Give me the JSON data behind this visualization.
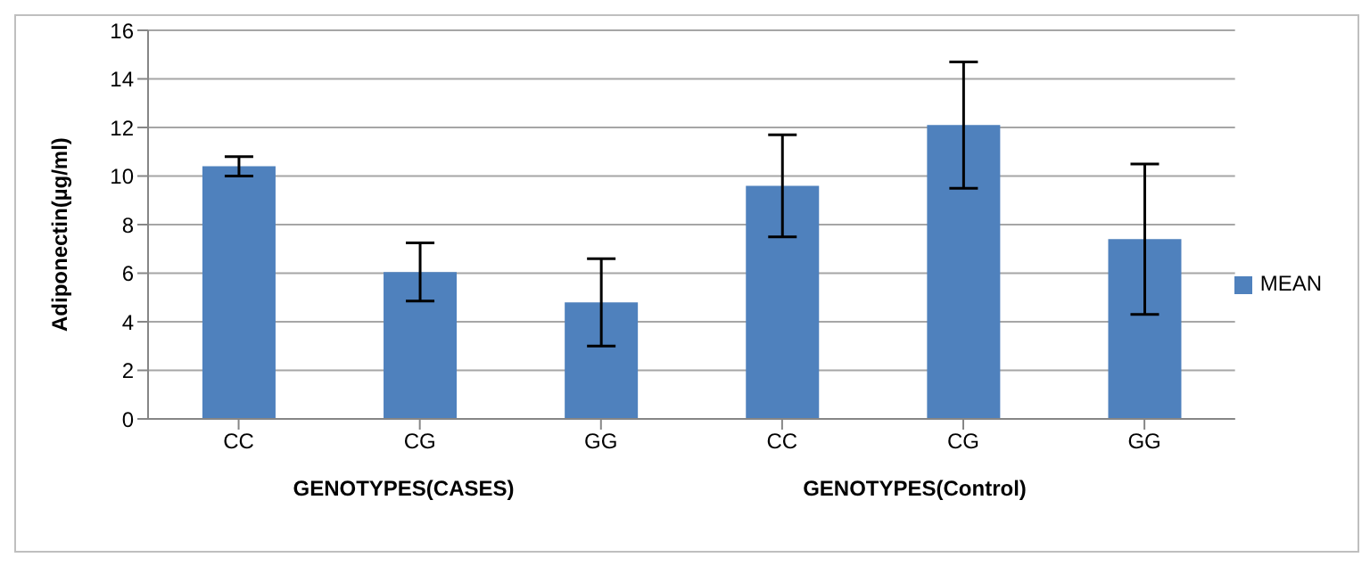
{
  "chart_data": {
    "type": "bar",
    "ylabel": "Adiponectin(µg/ml)",
    "xlabel": "GENOTYPES(CASES)",
    "annotations": [
      "GENOTYPES(Control)"
    ],
    "categories": [
      "CC",
      "CG",
      "GG",
      "CC",
      "CG",
      "GG"
    ],
    "series": [
      {
        "name": "MEAN",
        "color": "#4f81bd",
        "values": [
          10.4,
          6.05,
          4.8,
          9.6,
          12.1,
          7.4
        ],
        "errors": [
          0.4,
          1.2,
          1.8,
          2.1,
          2.6,
          3.1
        ]
      }
    ],
    "ylim": [
      0,
      16
    ],
    "yticks": [
      0,
      2,
      4,
      6,
      8,
      10,
      12,
      14,
      16
    ],
    "grid": "y",
    "legend": "right"
  }
}
